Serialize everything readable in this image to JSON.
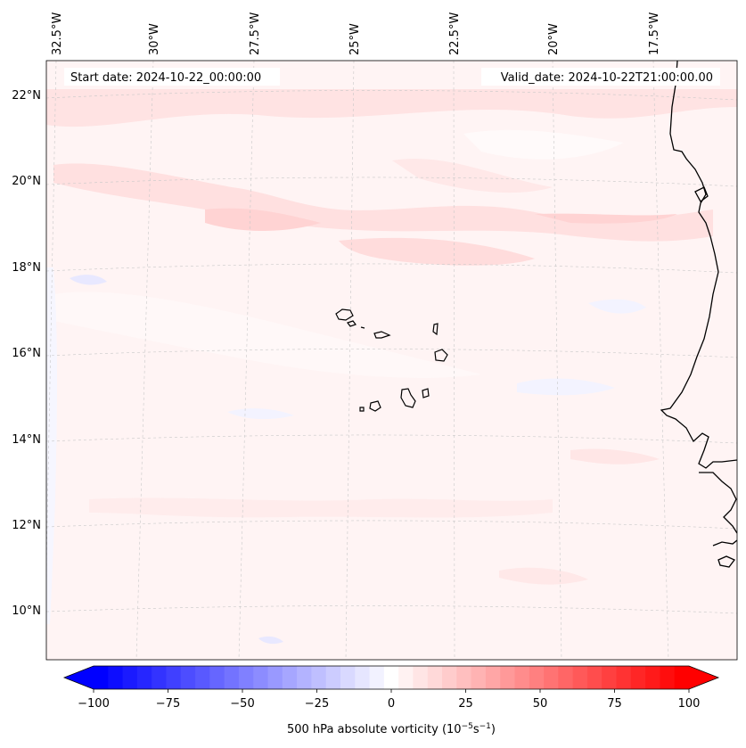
{
  "header": {
    "start_date": "Start date: 2024-10-22_00:00:00",
    "valid_date": "Valid_date: 2024-10-22T21:00:00.00"
  },
  "map": {
    "lon_labels": [
      "32.5°W",
      "30°W",
      "27.5°W",
      "25°W",
      "22.5°W",
      "20°W",
      "17.5°W"
    ],
    "lat_labels": [
      "22°N",
      "20°N",
      "18°N",
      "16°N",
      "14°N",
      "12°N",
      "10°N"
    ],
    "gridlines": "dashed",
    "background_color": "#fff4f4"
  },
  "colorbar": {
    "label_text": "500 hPa absolute vorticity (10",
    "label_exp1": "−5",
    "label_mid": "s",
    "label_exp2": "−1",
    "label_close": ")",
    "ticks": [
      "−100",
      "−75",
      "−50",
      "−25",
      "0",
      "25",
      "50",
      "75",
      "100"
    ],
    "min": -100,
    "max": 100,
    "levels": 41,
    "min_color": "#0000ff",
    "max_color": "#ff0000",
    "extend": "both"
  }
}
